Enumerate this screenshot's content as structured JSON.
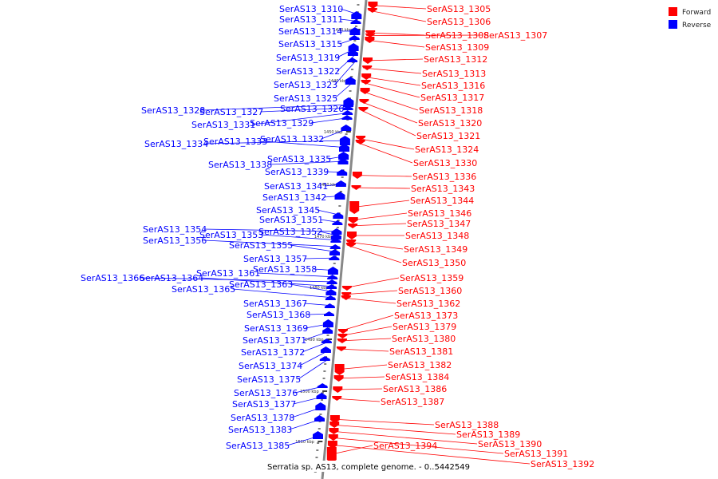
{
  "caption": "Serratia sp. AS13, complete genome. - 0..5442549",
  "legend": [
    {
      "label": "Forward",
      "color": "#ff0000"
    },
    {
      "label": "Reverse",
      "color": "#0000ff"
    }
  ],
  "ticks": [
    "1430 kbp",
    "1440 kbp",
    "1450 kbp",
    "1460 kbp",
    "1470 kbp",
    "1480 kbp",
    "1490 kbp",
    "1500 kbp",
    "1510 kbp"
  ],
  "forward_genes": [
    "SerAS13_1305",
    "SerAS13_1306",
    "SerAS13_1308",
    "SerAS13_1307",
    "SerAS13_1309",
    "SerAS13_1312",
    "SerAS13_1313",
    "SerAS13_1316",
    "SerAS13_1317",
    "SerAS13_1318",
    "SerAS13_1320",
    "SerAS13_1321",
    "SerAS13_1324",
    "SerAS13_1330",
    "SerAS13_1336",
    "SerAS13_1343",
    "SerAS13_1344",
    "SerAS13_1346",
    "SerAS13_1347",
    "SerAS13_1348",
    "SerAS13_1349",
    "SerAS13_1350",
    "SerAS13_1359",
    "SerAS13_1360",
    "SerAS13_1362",
    "SerAS13_1373",
    "SerAS13_1379",
    "SerAS13_1380",
    "SerAS13_1381",
    "SerAS13_1382",
    "SerAS13_1384",
    "SerAS13_1386",
    "SerAS13_1387",
    "SerAS13_1388",
    "SerAS13_1389",
    "SerAS13_1390",
    "SerAS13_1391",
    "SerAS13_1392",
    "SerAS13_1394"
  ],
  "reverse_genes": [
    "SerAS13_1310",
    "SerAS13_1311",
    "SerAS13_1314",
    "SerAS13_1315",
    "SerAS13_1319",
    "SerAS13_1322",
    "SerAS13_1323",
    "SerAS13_1325",
    "SerAS13_1326",
    "SerAS13_1328",
    "SerAS13_1327",
    "SerAS13_1331",
    "SerAS13_1329",
    "SerAS13_1332",
    "SerAS13_1334",
    "SerAS13_1333",
    "SerAS13_1335",
    "SerAS13_1338",
    "SerAS13_1339",
    "SerAS13_1341",
    "SerAS13_1342",
    "SerAS13_1345",
    "SerAS13_1351",
    "SerAS13_1354",
    "SerAS13_1352",
    "SerAS13_1353",
    "SerAS13_1356",
    "SerAS13_1355",
    "SerAS13_1357",
    "SerAS13_1358",
    "SerAS13_1361",
    "SerAS13_1366",
    "SerAS13_1364",
    "SerAS13_1363",
    "SerAS13_1365",
    "SerAS13_1367",
    "SerAS13_1368",
    "SerAS13_1369",
    "SerAS13_1371",
    "SerAS13_1372",
    "SerAS13_1374",
    "SerAS13_1375",
    "SerAS13_1376",
    "SerAS13_1377",
    "SerAS13_1378",
    "SerAS13_1383",
    "SerAS13_1385"
  ]
}
